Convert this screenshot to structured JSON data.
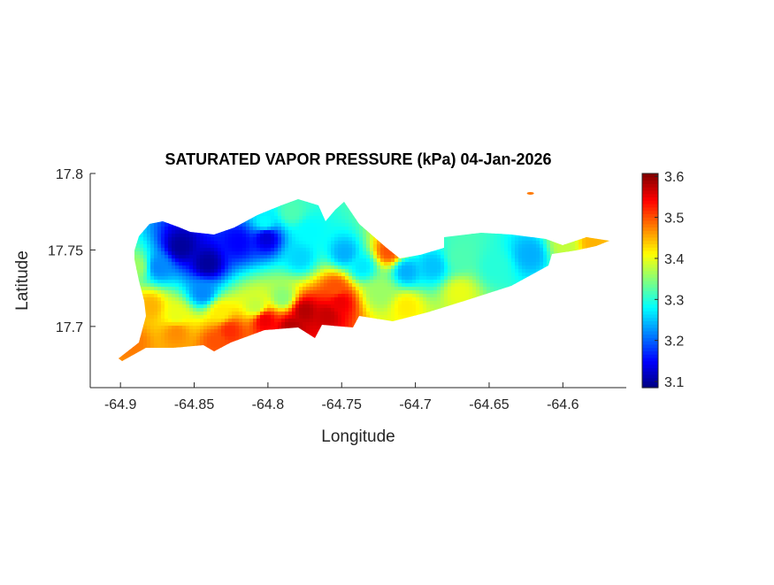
{
  "chart_data": {
    "type": "heatmap",
    "title": "SATURATED VAPOR PRESSURE (kPa) 04-Jan-2026",
    "xlabel": "Longitude",
    "ylabel": "Latitude",
    "xlim": [
      -64.9205,
      -64.557
    ],
    "ylim": [
      17.66,
      17.8
    ],
    "xticks": [
      -64.9,
      -64.85,
      -64.8,
      -64.75,
      -64.7,
      -64.65,
      -64.6
    ],
    "xtick_labels": [
      "-64.9",
      "-64.85",
      "-64.8",
      "-64.75",
      "-64.7",
      "-64.65",
      "-64.6"
    ],
    "yticks": [
      17.7,
      17.75,
      17.8
    ],
    "ytick_labels": [
      "17.7",
      "17.75",
      "17.8"
    ],
    "colormap": "jet",
    "clim": [
      3.085,
      3.607
    ],
    "colorbar_ticks": [
      3.1,
      3.2,
      3.3,
      3.4,
      3.5,
      3.6
    ],
    "colorbar_tick_labels": [
      "3.1",
      "3.2",
      "3.3",
      "3.4",
      "3.5",
      "3.6"
    ],
    "grid": false,
    "points": [
      {
        "lon": -64.859,
        "lat": 17.752,
        "value": 3.1
      },
      {
        "lon": -64.841,
        "lat": 17.741,
        "value": 3.1
      },
      {
        "lon": -64.82,
        "lat": 17.755,
        "value": 3.15
      },
      {
        "lon": -64.801,
        "lat": 17.758,
        "value": 3.13
      },
      {
        "lon": -64.874,
        "lat": 17.739,
        "value": 3.22
      },
      {
        "lon": -64.844,
        "lat": 17.722,
        "value": 3.22
      },
      {
        "lon": -64.778,
        "lat": 17.745,
        "value": 3.26
      },
      {
        "lon": -64.748,
        "lat": 17.748,
        "value": 3.24
      },
      {
        "lon": -64.736,
        "lat": 17.739,
        "value": 3.27
      },
      {
        "lon": -64.706,
        "lat": 17.736,
        "value": 3.24
      },
      {
        "lon": -64.688,
        "lat": 17.739,
        "value": 3.25
      },
      {
        "lon": -64.622,
        "lat": 17.747,
        "value": 3.24
      },
      {
        "lon": -64.646,
        "lat": 17.739,
        "value": 3.3
      },
      {
        "lon": -64.772,
        "lat": 17.762,
        "value": 3.28
      },
      {
        "lon": -64.802,
        "lat": 17.768,
        "value": 3.28
      },
      {
        "lon": -64.889,
        "lat": 17.739,
        "value": 3.36
      },
      {
        "lon": -64.79,
        "lat": 17.719,
        "value": 3.35
      },
      {
        "lon": -64.67,
        "lat": 17.745,
        "value": 3.32
      },
      {
        "lon": -64.598,
        "lat": 17.753,
        "value": 3.38
      },
      {
        "lon": -64.724,
        "lat": 17.722,
        "value": 3.36
      },
      {
        "lon": -64.784,
        "lat": 17.775,
        "value": 3.32
      },
      {
        "lon": -64.88,
        "lat": 17.713,
        "value": 3.45
      },
      {
        "lon": -64.892,
        "lat": 17.69,
        "value": 3.48
      },
      {
        "lon": -64.862,
        "lat": 17.696,
        "value": 3.47
      },
      {
        "lon": -64.706,
        "lat": 17.713,
        "value": 3.42
      },
      {
        "lon": -64.67,
        "lat": 17.722,
        "value": 3.4
      },
      {
        "lon": -64.58,
        "lat": 17.755,
        "value": 3.45
      },
      {
        "lon": -64.718,
        "lat": 17.749,
        "value": 3.5
      },
      {
        "lon": -64.802,
        "lat": 17.704,
        "value": 3.55
      },
      {
        "lon": -64.775,
        "lat": 17.71,
        "value": 3.58
      },
      {
        "lon": -64.76,
        "lat": 17.707,
        "value": 3.57
      },
      {
        "lon": -64.751,
        "lat": 17.716,
        "value": 3.55
      },
      {
        "lon": -64.754,
        "lat": 17.725,
        "value": 3.5
      },
      {
        "lon": -64.826,
        "lat": 17.697,
        "value": 3.52
      },
      {
        "lon": -64.784,
        "lat": 17.699,
        "value": 3.58
      },
      {
        "lon": -64.835,
        "lat": 17.69,
        "value": 3.5
      },
      {
        "lon": -64.808,
        "lat": 17.713,
        "value": 3.38
      },
      {
        "lon": -64.832,
        "lat": 17.709,
        "value": 3.42
      },
      {
        "lon": -64.862,
        "lat": 17.707,
        "value": 3.4
      },
      {
        "lon": -64.622,
        "lat": 17.787,
        "value": 3.48
      }
    ]
  }
}
